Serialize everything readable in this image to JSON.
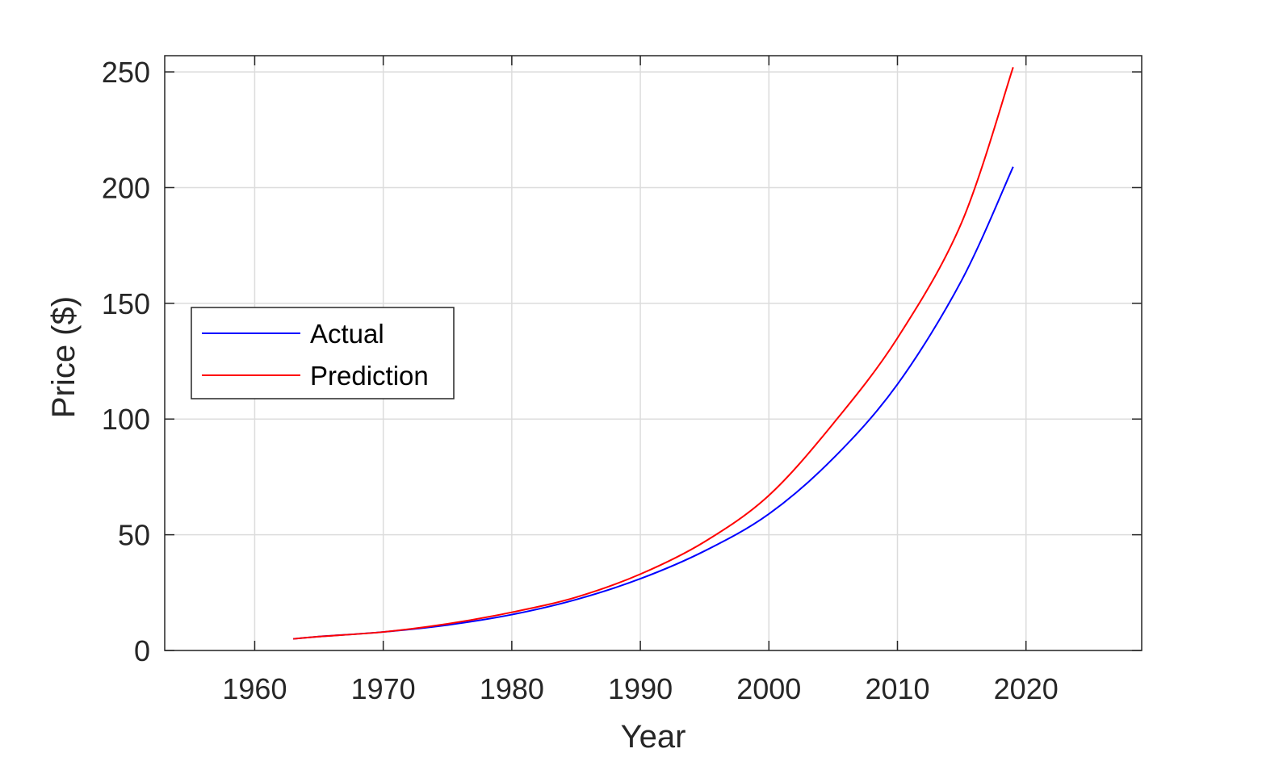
{
  "chart_data": {
    "type": "line",
    "title": "",
    "xlabel": "Year",
    "ylabel": "Price ($)",
    "xlim": [
      1953,
      2029
    ],
    "ylim": [
      0,
      257
    ],
    "xticks": [
      1960,
      1970,
      1980,
      1990,
      2000,
      2010,
      2020
    ],
    "yticks": [
      0,
      50,
      100,
      150,
      200,
      250
    ],
    "grid": true,
    "legend": {
      "placement": "middle-left",
      "entries": [
        "Actual",
        "Prediction"
      ]
    },
    "x": [
      1963,
      1965,
      1970,
      1975,
      1980,
      1985,
      1990,
      1995,
      2000,
      2005,
      2010,
      2015,
      2019
    ],
    "series": [
      {
        "name": "Actual",
        "color": "#0000ff",
        "values": [
          5,
          6,
          8,
          11,
          15.5,
          22,
          31,
          43,
          59,
          83,
          115,
          160,
          209
        ]
      },
      {
        "name": "Prediction",
        "color": "#ff0000",
        "values": [
          5,
          6,
          8,
          11.5,
          16.5,
          23,
          33,
          47,
          67,
          98,
          135,
          185,
          252
        ]
      }
    ]
  }
}
